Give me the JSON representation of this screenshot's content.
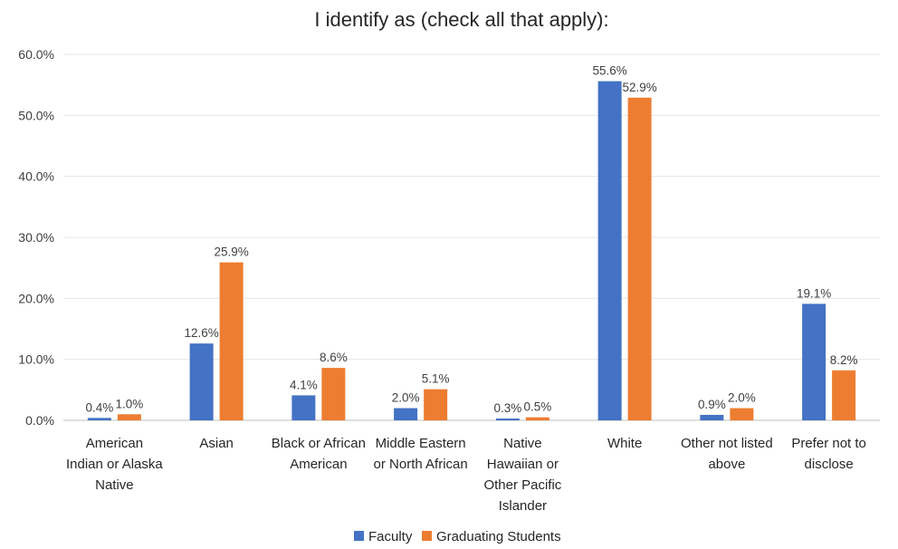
{
  "chart_data": {
    "type": "bar",
    "title": "I identify as (check all that apply):",
    "xlabel": "",
    "ylabel": "",
    "ylim": [
      0,
      60
    ],
    "yticks": [
      "0.0%",
      "10.0%",
      "20.0%",
      "30.0%",
      "40.0%",
      "50.0%",
      "60.0%"
    ],
    "categories": [
      [
        "American",
        "Indian or Alaska",
        "Native"
      ],
      [
        "Asian"
      ],
      [
        "Black or African",
        "American"
      ],
      [
        "Middle Eastern",
        "or North African"
      ],
      [
        "Native",
        "Hawaiian or",
        "Other Pacific",
        "Islander"
      ],
      [
        "White"
      ],
      [
        "Other not listed",
        "above"
      ],
      [
        "Prefer not to",
        "disclose"
      ]
    ],
    "series": [
      {
        "name": "Faculty",
        "color": "#4472c4",
        "values": [
          0.4,
          12.6,
          4.1,
          2.0,
          0.3,
          55.6,
          0.9,
          19.1
        ],
        "labels": [
          "0.4%",
          "12.6%",
          "4.1%",
          "2.0%",
          "0.3%",
          "55.6%",
          "0.9%",
          "19.1%"
        ]
      },
      {
        "name": "Graduating Students",
        "color": "#ed7d31",
        "values": [
          1.0,
          25.9,
          8.6,
          5.1,
          0.5,
          52.9,
          2.0,
          8.2
        ],
        "labels": [
          "1.0%",
          "25.9%",
          "8.6%",
          "5.1%",
          "0.5%",
          "52.9%",
          "2.0%",
          "8.2%"
        ]
      }
    ],
    "grid": true,
    "legend": "bottom"
  }
}
